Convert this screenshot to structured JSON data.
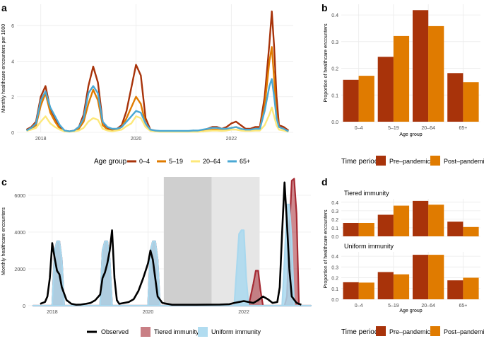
{
  "colors": {
    "age_0_4": "#a8330a",
    "age_5_19": "#e07b00",
    "age_20_64": "#fde87a",
    "age_65_plus": "#4aa8d4",
    "pre_pandemic": "#a8330a",
    "post_pandemic": "#e07b00",
    "observed": "#000000",
    "tiered": "#a52a33",
    "uniform": "#a9d8ee",
    "gridline": "#ebebeb",
    "shade_dark": "#cfcfcf",
    "shade_light": "#e6e6e6"
  },
  "panel_labels": {
    "a": "a",
    "b": "b",
    "c": "c",
    "d": "d"
  },
  "legend_a": {
    "title": "Age group",
    "items": [
      {
        "label": "0–4",
        "color_key": "age_0_4"
      },
      {
        "label": "5–19",
        "color_key": "age_5_19"
      },
      {
        "label": "20–64",
        "color_key": "age_20_64"
      },
      {
        "label": "65+",
        "color_key": "age_65_plus"
      }
    ]
  },
  "legend_b": {
    "title": "Time period",
    "items": [
      {
        "label": "Pre–pandemic",
        "color_key": "pre_pandemic"
      },
      {
        "label": "Post–pandemic",
        "color_key": "post_pandemic"
      }
    ]
  },
  "legend_c": {
    "items": [
      {
        "label": "Observed",
        "kind": "line",
        "color_key": "observed"
      },
      {
        "label": "Tiered immunity",
        "kind": "fill",
        "color_key": "tiered"
      },
      {
        "label": "Uniform immunity",
        "kind": "fill",
        "color_key": "uniform"
      }
    ]
  },
  "legend_d": {
    "title": "Time period",
    "items": [
      {
        "label": "Pre–pandemic",
        "color_key": "pre_pandemic"
      },
      {
        "label": "Post–pandemic",
        "color_key": "post_pandemic"
      }
    ]
  },
  "chart_data": [
    {
      "panel": "a",
      "type": "line",
      "title": "",
      "xlabel": "",
      "ylabel": "Monthly healthcare encounters per 1000",
      "xlim": [
        2017.5,
        2023.3
      ],
      "ylim": [
        0,
        7.2
      ],
      "xticks": [
        2018,
        2020,
        2022
      ],
      "xtick_labels": [
        "2018",
        "2020",
        "2022"
      ],
      "yticks": [
        0,
        2,
        4,
        6
      ],
      "ytick_labels": [
        "0",
        "2",
        "4",
        "6"
      ],
      "x": [
        2017.7,
        2017.8,
        2017.9,
        2018.0,
        2018.1,
        2018.2,
        2018.3,
        2018.4,
        2018.5,
        2018.6,
        2018.7,
        2018.8,
        2018.9,
        2019.0,
        2019.1,
        2019.2,
        2019.3,
        2019.4,
        2019.5,
        2019.6,
        2019.7,
        2019.8,
        2019.9,
        2020.0,
        2020.1,
        2020.2,
        2020.3,
        2020.4,
        2020.5,
        2020.6,
        2020.7,
        2020.8,
        2020.9,
        2021.0,
        2021.1,
        2021.2,
        2021.3,
        2021.4,
        2021.5,
        2021.6,
        2021.7,
        2021.8,
        2021.9,
        2022.0,
        2022.1,
        2022.2,
        2022.3,
        2022.4,
        2022.5,
        2022.6,
        2022.7,
        2022.8,
        2022.85,
        2022.9,
        2022.95,
        2023.0,
        2023.1,
        2023.2
      ],
      "series": [
        {
          "name": "0–4",
          "color_key": "age_0_4",
          "values": [
            0.15,
            0.3,
            0.6,
            2.0,
            2.6,
            1.3,
            0.8,
            0.3,
            0.1,
            0.05,
            0.1,
            0.3,
            1.0,
            2.6,
            3.7,
            2.8,
            0.6,
            0.2,
            0.15,
            0.2,
            0.4,
            1.2,
            2.5,
            3.8,
            3.2,
            0.8,
            0.15,
            0.1,
            0.05,
            0.05,
            0.05,
            0.05,
            0.05,
            0.05,
            0.05,
            0.1,
            0.05,
            0.1,
            0.2,
            0.3,
            0.3,
            0.2,
            0.3,
            0.5,
            0.6,
            0.4,
            0.2,
            0.2,
            0.3,
            0.3,
            2.0,
            5.0,
            6.8,
            4.8,
            2.0,
            0.4,
            0.3,
            0.1
          ]
        },
        {
          "name": "5–19",
          "color_key": "age_5_19",
          "values": [
            0.1,
            0.2,
            0.4,
            1.5,
            2.2,
            1.1,
            0.6,
            0.2,
            0.05,
            0.05,
            0.05,
            0.2,
            0.6,
            1.6,
            2.4,
            1.8,
            0.4,
            0.15,
            0.1,
            0.15,
            0.3,
            0.8,
            1.4,
            2.0,
            1.6,
            0.5,
            0.1,
            0.05,
            0.05,
            0.05,
            0.05,
            0.05,
            0.05,
            0.05,
            0.05,
            0.05,
            0.05,
            0.05,
            0.1,
            0.15,
            0.15,
            0.1,
            0.15,
            0.25,
            0.3,
            0.2,
            0.1,
            0.1,
            0.2,
            0.2,
            1.5,
            4.0,
            4.8,
            3.0,
            1.0,
            0.3,
            0.2,
            0.05
          ]
        },
        {
          "name": "20–64",
          "color_key": "age_20_64",
          "values": [
            0.08,
            0.15,
            0.25,
            0.6,
            0.9,
            0.5,
            0.3,
            0.15,
            0.05,
            0.03,
            0.05,
            0.1,
            0.25,
            0.6,
            0.8,
            0.7,
            0.2,
            0.1,
            0.05,
            0.1,
            0.15,
            0.35,
            0.5,
            0.9,
            0.8,
            0.3,
            0.08,
            0.05,
            0.03,
            0.03,
            0.03,
            0.03,
            0.03,
            0.03,
            0.03,
            0.03,
            0.03,
            0.05,
            0.08,
            0.1,
            0.1,
            0.08,
            0.1,
            0.15,
            0.15,
            0.1,
            0.08,
            0.08,
            0.1,
            0.1,
            0.4,
            1.0,
            1.4,
            0.9,
            0.4,
            0.15,
            0.1,
            0.03
          ]
        },
        {
          "name": "65+",
          "color_key": "age_65_plus",
          "values": [
            0.1,
            0.25,
            0.5,
            1.8,
            2.3,
            1.4,
            0.9,
            0.4,
            0.1,
            0.05,
            0.1,
            0.3,
            0.8,
            2.2,
            2.6,
            2.2,
            0.6,
            0.3,
            0.2,
            0.2,
            0.3,
            0.6,
            0.9,
            1.2,
            1.1,
            0.5,
            0.15,
            0.1,
            0.08,
            0.08,
            0.08,
            0.08,
            0.08,
            0.08,
            0.08,
            0.1,
            0.1,
            0.15,
            0.2,
            0.25,
            0.25,
            0.2,
            0.2,
            0.25,
            0.3,
            0.2,
            0.15,
            0.15,
            0.2,
            0.2,
            1.2,
            2.6,
            3.0,
            2.0,
            0.8,
            0.3,
            0.2,
            0.05
          ]
        }
      ]
    },
    {
      "panel": "b",
      "type": "bar",
      "title": "",
      "xlabel": "Age group",
      "ylabel": "Proportion of healthcare encounters",
      "ylim": [
        0,
        0.44
      ],
      "yticks": [
        0,
        0.1,
        0.2,
        0.3,
        0.4
      ],
      "ytick_labels": [
        "0.0",
        "0.1",
        "0.2",
        "0.3",
        "0.4"
      ],
      "categories": [
        "0–4",
        "5–19",
        "20–64",
        "65+"
      ],
      "series": [
        {
          "name": "Pre–pandemic",
          "color_key": "pre_pandemic",
          "values": [
            0.157,
            0.243,
            0.418,
            0.182
          ]
        },
        {
          "name": "Post–pandemic",
          "color_key": "post_pandemic",
          "values": [
            0.172,
            0.321,
            0.358,
            0.148
          ]
        }
      ]
    },
    {
      "panel": "c",
      "type": "area",
      "title": "",
      "xlabel": "",
      "ylabel": "Monthly healthcare encounters",
      "xlim": [
        2017.5,
        2023.4
      ],
      "ylim": [
        0,
        7000
      ],
      "xticks": [
        2018,
        2020,
        2022
      ],
      "xtick_labels": [
        "2018",
        "2020",
        "2022"
      ],
      "yticks": [
        0,
        2000,
        4000,
        6000
      ],
      "ytick_labels": [
        "0",
        "2000",
        "4000",
        "6000"
      ],
      "shaded_periods": [
        {
          "start": 2020.33,
          "end": 2021.33,
          "shade": "dark"
        },
        {
          "start": 2021.33,
          "end": 2022.33,
          "shade": "light"
        }
      ],
      "uniform_immunity": {
        "x": [
          2017.6,
          2018.0,
          2018.05,
          2018.1,
          2018.15,
          2018.2,
          2018.25,
          2019.0,
          2019.05,
          2019.1,
          2019.15,
          2019.2,
          2019.25,
          2020.0,
          2020.05,
          2020.1,
          2020.15,
          2020.2,
          2020.25,
          2021.8,
          2021.9,
          2021.95,
          2022.0,
          2022.05,
          2022.1,
          2022.2,
          2022.8,
          2022.85,
          2022.9,
          2022.95,
          2023.0,
          2023.05,
          2023.4
        ],
        "values": [
          0,
          0,
          3000,
          3500,
          3500,
          2500,
          0,
          0,
          3000,
          3500,
          3500,
          2500,
          0,
          0,
          3000,
          3500,
          3500,
          2500,
          0,
          0,
          3900,
          4100,
          4100,
          1500,
          0,
          0,
          0,
          2500,
          5500,
          5500,
          3500,
          0,
          0
        ]
      },
      "tiered_immunity": {
        "x": [
          2017.6,
          2018.0,
          2018.05,
          2018.1,
          2018.15,
          2018.2,
          2018.25,
          2019.0,
          2019.05,
          2019.1,
          2019.15,
          2019.2,
          2019.25,
          2020.0,
          2020.05,
          2020.1,
          2020.15,
          2020.2,
          2020.25,
          2022.1,
          2022.2,
          2022.25,
          2022.3,
          2022.35,
          2022.4,
          2022.85,
          2022.9,
          2022.95,
          2023.0,
          2023.05,
          2023.1,
          2023.15,
          2023.4
        ],
        "values": [
          0,
          0,
          3000,
          3500,
          3500,
          2500,
          0,
          0,
          3000,
          3500,
          3500,
          2500,
          0,
          0,
          3000,
          3500,
          3500,
          2500,
          0,
          0,
          1200,
          1900,
          1900,
          800,
          0,
          0,
          500,
          4000,
          6800,
          6900,
          5000,
          0,
          0
        ]
      },
      "observed": {
        "x": [
          2017.75,
          2017.85,
          2017.9,
          2017.95,
          2018.0,
          2018.05,
          2018.1,
          2018.15,
          2018.2,
          2018.3,
          2018.4,
          2018.5,
          2018.6,
          2018.7,
          2018.8,
          2018.9,
          2019.0,
          2019.05,
          2019.1,
          2019.15,
          2019.2,
          2019.25,
          2019.3,
          2019.35,
          2019.4,
          2019.5,
          2019.6,
          2019.7,
          2019.8,
          2019.9,
          2020.0,
          2020.05,
          2020.1,
          2020.15,
          2020.2,
          2020.3,
          2020.5,
          2021.0,
          2021.5,
          2021.7,
          2021.8,
          2021.9,
          2022.0,
          2022.1,
          2022.2,
          2022.3,
          2022.4,
          2022.5,
          2022.6,
          2022.7,
          2022.75,
          2022.8,
          2022.85,
          2022.9,
          2022.95,
          2023.0,
          2023.1,
          2023.2
        ],
        "values": [
          100,
          200,
          500,
          1500,
          3400,
          2600,
          1900,
          1700,
          1000,
          300,
          100,
          50,
          60,
          100,
          150,
          300,
          600,
          1500,
          1800,
          2300,
          3000,
          4100,
          1500,
          300,
          100,
          150,
          200,
          350,
          800,
          1500,
          2300,
          3000,
          2500,
          1500,
          500,
          150,
          50,
          50,
          60,
          80,
          150,
          200,
          250,
          200,
          150,
          300,
          500,
          350,
          150,
          200,
          1000,
          4000,
          6700,
          4500,
          2000,
          500,
          150,
          50
        ]
      }
    },
    {
      "panel": "d",
      "type": "bar",
      "xlabel": "Age group",
      "ylabel": "Proportion of healthcare encounters",
      "facets": [
        {
          "title": "Tiered immunity",
          "ylim": [
            0,
            0.44
          ],
          "yticks": [
            0,
            0.1,
            0.2,
            0.3,
            0.4
          ],
          "ytick_labels": [
            "0.0",
            "0.1",
            "0.2",
            "0.3",
            "0.4"
          ],
          "categories": [
            "0–4",
            "5–19",
            "20–64",
            "65+"
          ],
          "series": [
            {
              "name": "Pre–pandemic",
              "color_key": "pre_pandemic",
              "values": [
                0.158,
                0.253,
                0.416,
                0.172
              ]
            },
            {
              "name": "Post–pandemic",
              "color_key": "post_pandemic",
              "values": [
                0.158,
                0.36,
                0.371,
                0.11
              ]
            }
          ]
        },
        {
          "title": "Uniform immunity",
          "ylim": [
            0,
            0.44
          ],
          "yticks": [
            0,
            0.1,
            0.2,
            0.3,
            0.4
          ],
          "ytick_labels": [
            "0.0",
            "0.1",
            "0.2",
            "0.3",
            "0.4"
          ],
          "categories": [
            "0–4",
            "5–19",
            "20–64",
            "65+"
          ],
          "series": [
            {
              "name": "Pre–pandemic",
              "color_key": "pre_pandemic",
              "values": [
                0.158,
                0.253,
                0.413,
                0.176
              ]
            },
            {
              "name": "Post–pandemic",
              "color_key": "post_pandemic",
              "values": [
                0.155,
                0.232,
                0.413,
                0.2
              ]
            }
          ]
        }
      ]
    }
  ]
}
